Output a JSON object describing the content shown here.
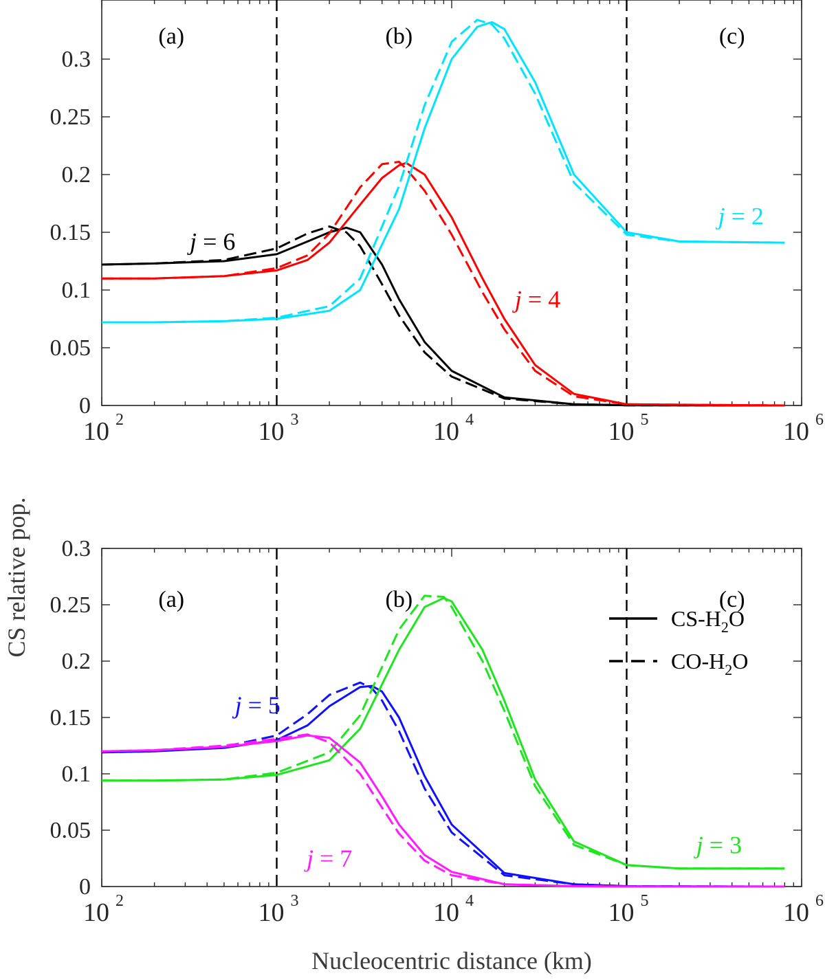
{
  "chart_data": [
    {
      "type": "line",
      "panel": "top",
      "xscale": "log",
      "xlim": [
        100,
        1000000
      ],
      "ylim": [
        0,
        0.34
      ],
      "yticks": [
        0,
        0.05,
        0.1,
        0.15,
        0.2,
        0.25,
        0.3
      ],
      "ytick_labels": [
        "0",
        "0.05",
        "0.1",
        "0.15",
        "0.2",
        "0.25",
        "0.3"
      ],
      "xticks": [
        {
          "value": 100,
          "base": "10",
          "exp": "2"
        },
        {
          "value": 1000,
          "base": "10",
          "exp": "3"
        },
        {
          "value": 10000,
          "base": "10",
          "exp": "4"
        },
        {
          "value": 100000,
          "base": "10",
          "exp": "5"
        },
        {
          "value": 1000000,
          "base": "10",
          "exp": "6"
        }
      ],
      "vlines": [
        1000,
        100000
      ],
      "region_labels": [
        {
          "text": "(a)",
          "x": 250,
          "y": 0.32
        },
        {
          "text": "(b)",
          "x": 5000,
          "y": 0.32
        },
        {
          "text": "(c)",
          "x": 400000,
          "y": 0.32
        }
      ],
      "series": [
        {
          "name": "j = 6",
          "j": "j",
          "label_rest": " = 6",
          "color": "#000000",
          "label_x": 430,
          "label_y": 0.142,
          "label_anchor": "middle",
          "solid": {
            "x": [
              100,
              200,
              500,
              1000,
              1500,
              2000,
              2500,
              3000,
              4000,
              5000,
              7000,
              10000,
              20000,
              50000,
              100000,
              800000
            ],
            "y": [
              0.122,
              0.123,
              0.125,
              0.131,
              0.142,
              0.15,
              0.154,
              0.15,
              0.122,
              0.092,
              0.055,
              0.03,
              0.007,
              0.001,
              0.0002,
              0
            ]
          },
          "dashed": {
            "x": [
              100,
              200,
              500,
              1000,
              1500,
              2000,
              2500,
              3000,
              4000,
              5000,
              7000,
              10000,
              20000,
              50000,
              100000,
              800000
            ],
            "y": [
              0.122,
              0.123,
              0.126,
              0.136,
              0.149,
              0.155,
              0.15,
              0.138,
              0.105,
              0.078,
              0.046,
              0.025,
              0.006,
              0.001,
              0.0002,
              0
            ]
          }
        },
        {
          "name": "j = 4",
          "j": "j",
          "label_rest": " = 4",
          "color": "#ff0000",
          "label_x": 31000,
          "label_y": 0.092,
          "label_anchor": "middle",
          "solid": {
            "x": [
              100,
              200,
              500,
              1000,
              1500,
              2000,
              3000,
              4000,
              5000,
              5500,
              7000,
              10000,
              15000,
              20000,
              30000,
              50000,
              100000,
              800000
            ],
            "y": [
              0.11,
              0.11,
              0.112,
              0.117,
              0.126,
              0.141,
              0.174,
              0.197,
              0.208,
              0.21,
              0.2,
              0.163,
              0.11,
              0.075,
              0.035,
              0.01,
              0.001,
              0
            ]
          },
          "dashed": {
            "x": [
              100,
              200,
              500,
              1000,
              1500,
              2000,
              3000,
              4000,
              5000,
              5500,
              7000,
              10000,
              15000,
              20000,
              30000,
              50000,
              100000,
              800000
            ],
            "y": [
              0.11,
              0.11,
              0.112,
              0.119,
              0.13,
              0.149,
              0.189,
              0.209,
              0.211,
              0.205,
              0.186,
              0.148,
              0.098,
              0.066,
              0.03,
              0.008,
              0.001,
              0
            ]
          }
        },
        {
          "name": "j = 2",
          "j": "j",
          "label_rest": " = 2",
          "color": "#00e5ff",
          "label_x": 450000,
          "label_y": 0.164,
          "label_anchor": "middle",
          "solid": {
            "x": [
              100,
              200,
              500,
              1000,
              2000,
              3000,
              5000,
              7000,
              10000,
              14000,
              17000,
              20000,
              30000,
              50000,
              100000,
              200000,
              800000
            ],
            "y": [
              0.072,
              0.072,
              0.073,
              0.075,
              0.082,
              0.1,
              0.17,
              0.24,
              0.3,
              0.328,
              0.332,
              0.326,
              0.28,
              0.2,
              0.15,
              0.142,
              0.141
            ]
          },
          "dashed": {
            "x": [
              100,
              200,
              500,
              1000,
              2000,
              3000,
              5000,
              7000,
              10000,
              14000,
              17000,
              20000,
              30000,
              50000,
              100000,
              200000,
              800000
            ],
            "y": [
              0.072,
              0.072,
              0.073,
              0.076,
              0.086,
              0.11,
              0.19,
              0.26,
              0.315,
              0.334,
              0.33,
              0.318,
              0.27,
              0.193,
              0.148,
              0.142,
              0.141
            ]
          }
        }
      ]
    },
    {
      "type": "line",
      "panel": "bottom",
      "xscale": "log",
      "xlim": [
        100,
        1000000
      ],
      "ylim": [
        0,
        0.3
      ],
      "yticks": [
        0,
        0.05,
        0.1,
        0.15,
        0.2,
        0.25,
        0.3
      ],
      "ytick_labels": [
        "0",
        "0.05",
        "0.1",
        "0.15",
        "0.2",
        "0.25",
        "0.3"
      ],
      "xticks": [
        {
          "value": 100,
          "base": "10",
          "exp": "2"
        },
        {
          "value": 1000,
          "base": "10",
          "exp": "3"
        },
        {
          "value": 10000,
          "base": "10",
          "exp": "4"
        },
        {
          "value": 100000,
          "base": "10",
          "exp": "5"
        },
        {
          "value": 1000000,
          "base": "10",
          "exp": "6"
        }
      ],
      "vlines": [
        1000,
        100000
      ],
      "region_labels": [
        {
          "text": "(a)",
          "x": 250,
          "y": 0.255
        },
        {
          "text": "(b)",
          "x": 5000,
          "y": 0.255
        },
        {
          "text": "(c)",
          "x": 400000,
          "y": 0.255
        }
      ],
      "legend": {
        "position": "right",
        "entries": [
          {
            "style": "solid",
            "pre": "CS-H",
            "sub": "2",
            "post": "O"
          },
          {
            "style": "dashed",
            "pre": "CO-H",
            "sub": "2",
            "post": "O"
          }
        ]
      },
      "series": [
        {
          "name": "j = 5",
          "j": "j",
          "label_rest": " = 5",
          "color": "#1010ff",
          "label_x": 1050,
          "label_y": 0.161,
          "label_anchor": "end",
          "solid": {
            "x": [
              100,
              200,
              500,
              1000,
              1500,
              2000,
              3000,
              3500,
              4000,
              5000,
              7000,
              10000,
              20000,
              50000,
              100000,
              800000
            ],
            "y": [
              0.119,
              0.12,
              0.123,
              0.13,
              0.143,
              0.16,
              0.177,
              0.178,
              0.173,
              0.15,
              0.098,
              0.055,
              0.012,
              0.002,
              0.0003,
              0
            ]
          },
          "dashed": {
            "x": [
              100,
              200,
              500,
              1000,
              1500,
              2000,
              3000,
              3500,
              4000,
              5000,
              7000,
              10000,
              20000,
              50000,
              100000,
              800000
            ],
            "y": [
              0.119,
              0.12,
              0.124,
              0.134,
              0.153,
              0.17,
              0.181,
              0.176,
              0.165,
              0.138,
              0.087,
              0.048,
              0.01,
              0.002,
              0.0003,
              0
            ]
          }
        },
        {
          "name": "j = 3",
          "j": "j",
          "label_rest": " = 3",
          "color": "#1ee61e",
          "label_x": 250000,
          "label_y": 0.037,
          "label_anchor": "start",
          "solid": {
            "x": [
              100,
              200,
              500,
              1000,
              2000,
              3000,
              5000,
              7000,
              9000,
              10000,
              15000,
              20000,
              30000,
              50000,
              100000,
              200000,
              800000
            ],
            "y": [
              0.094,
              0.094,
              0.095,
              0.099,
              0.112,
              0.14,
              0.21,
              0.248,
              0.256,
              0.253,
              0.21,
              0.165,
              0.095,
              0.04,
              0.019,
              0.016,
              0.016
            ]
          },
          "dashed": {
            "x": [
              100,
              200,
              500,
              1000,
              2000,
              3000,
              5000,
              7000,
              9000,
              10000,
              15000,
              20000,
              30000,
              50000,
              100000,
              200000,
              800000
            ],
            "y": [
              0.094,
              0.094,
              0.095,
              0.101,
              0.119,
              0.152,
              0.228,
              0.258,
              0.257,
              0.248,
              0.2,
              0.156,
              0.089,
              0.037,
              0.019,
              0.016,
              0.016
            ]
          }
        },
        {
          "name": "j = 7",
          "j": "j",
          "label_rest": " = 7",
          "color": "#ff1aff",
          "label_x": 2000,
          "label_y": 0.025,
          "label_anchor": "middle",
          "solid": {
            "x": [
              100,
              200,
              500,
              1000,
              1500,
              2000,
              3000,
              4000,
              5000,
              7000,
              10000,
              20000,
              50000,
              100000,
              800000
            ],
            "y": [
              0.12,
              0.121,
              0.124,
              0.129,
              0.134,
              0.132,
              0.11,
              0.08,
              0.055,
              0.028,
              0.013,
              0.002,
              0.0003,
              0,
              0
            ]
          },
          "dashed": {
            "x": [
              100,
              200,
              500,
              1000,
              1500,
              2000,
              3000,
              4000,
              5000,
              7000,
              10000,
              20000,
              50000,
              100000,
              800000
            ],
            "y": [
              0.12,
              0.121,
              0.125,
              0.131,
              0.135,
              0.128,
              0.1,
              0.07,
              0.047,
              0.023,
              0.01,
              0.002,
              0.0003,
              0,
              0
            ]
          }
        }
      ]
    }
  ],
  "ylabel": "CS relative pop.",
  "xlabel": "Nucleocentric distance (km)"
}
